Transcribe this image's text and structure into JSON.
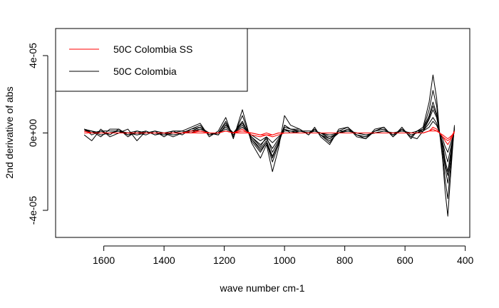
{
  "chart_data": {
    "type": "line",
    "title": "",
    "xlabel": "wave number cm-1",
    "ylabel": "2nd derivative of abs",
    "xlim": [
      1760,
      385
    ],
    "ylim": [
      -5.4e-05,
      5.4e-05
    ],
    "x_ticks": [
      1600,
      1400,
      1200,
      1000,
      800,
      600,
      400
    ],
    "x_tick_labels": [
      "1600",
      "1400",
      "1200",
      "1000",
      "800",
      "600",
      "400"
    ],
    "y_ticks": [
      -4e-05,
      0,
      4e-05
    ],
    "y_tick_labels": [
      "-4e-05",
      "0e+00",
      "4e-05"
    ],
    "grid": false,
    "legend_position": "top-left",
    "legend": [
      {
        "label": "50C Colombia SS",
        "color": "#ff0000"
      },
      {
        "label": "50C Colombia",
        "color": "#000000"
      }
    ],
    "series_groups": [
      {
        "legend_label": "50C Colombia",
        "color": "#000000",
        "x": [
          1665,
          1640,
          1610,
          1580,
          1550,
          1520,
          1490,
          1460,
          1430,
          1400,
          1370,
          1340,
          1310,
          1280,
          1250,
          1220,
          1195,
          1170,
          1140,
          1110,
          1080,
          1060,
          1040,
          1020,
          1000,
          980,
          950,
          920,
          900,
          880,
          850,
          820,
          790,
          760,
          730,
          700,
          670,
          640,
          610,
          580,
          560,
          540,
          520,
          507,
          495,
          485,
          475,
          467,
          458,
          450,
          443,
          436
        ],
        "lines": [
          [
            1e-06,
            1e-06,
            0,
            0,
            1e-06,
            0,
            -1e-06,
            0,
            0,
            0,
            0,
            0,
            1e-06,
            2e-06,
            0,
            0,
            3e-06,
            0,
            4e-06,
            -2e-06,
            -6e-06,
            -3e-06,
            -8e-06,
            -3e-06,
            2e-06,
            1e-06,
            1e-06,
            0,
            1e-06,
            0,
            -2e-06,
            0,
            1e-06,
            0,
            -1e-06,
            0,
            1e-06,
            0,
            1e-06,
            0,
            0,
            1e-06,
            5e-06,
            8e-06,
            5e-06,
            0,
            -5e-06,
            -1e-05,
            -1.5e-05,
            -9e-06,
            -4e-06,
            2e-06
          ],
          [
            2e-06,
            0,
            1e-06,
            -1e-06,
            2e-06,
            -1e-06,
            0,
            -1e-06,
            1e-06,
            0,
            -1e-06,
            0,
            2e-06,
            3e-06,
            -1e-06,
            0,
            5e-06,
            -1e-06,
            6e-06,
            -3e-06,
            -8e-06,
            -4e-06,
            -1.2e-05,
            -5e-06,
            3e-06,
            2e-06,
            1e-06,
            0,
            2e-06,
            -1e-06,
            -4e-06,
            0,
            2e-06,
            -1e-06,
            -2e-06,
            1e-06,
            2e-06,
            -1e-06,
            2e-06,
            -1e-06,
            0,
            2e-06,
            9e-06,
            1.6e-05,
            1e-05,
            0,
            -8e-06,
            -1.8e-05,
            -2.6e-05,
            -1.6e-05,
            -6e-06,
            3e-06
          ],
          [
            1e-06,
            1e-06,
            -1e-06,
            0,
            1e-06,
            0,
            1e-06,
            0,
            0,
            -1e-06,
            0,
            1e-06,
            0,
            2e-06,
            0,
            -1e-06,
            4e-06,
            0,
            5e-06,
            -2e-06,
            -7e-06,
            -2e-06,
            -1e-05,
            -4e-06,
            2e-06,
            0,
            1e-06,
            1e-06,
            1e-06,
            0,
            -3e-06,
            1e-06,
            1e-06,
            0,
            -1e-06,
            0,
            1e-06,
            0,
            1e-06,
            0,
            1e-06,
            1e-06,
            7e-06,
            1.2e-05,
            8e-06,
            0,
            -6e-06,
            -1.4e-05,
            -2e-05,
            -1.2e-05,
            -5e-06,
            2e-06
          ],
          [
            2e-06,
            -1e-06,
            1e-06,
            1e-06,
            1e-06,
            -1e-06,
            0,
            1e-06,
            -1e-06,
            0,
            1e-06,
            -1e-06,
            2e-06,
            4e-06,
            -1e-06,
            0,
            6e-06,
            -2e-06,
            9e-06,
            -4e-06,
            -1e-05,
            -5e-06,
            -1.5e-05,
            -6e-06,
            4e-06,
            2e-06,
            2e-06,
            -1e-06,
            2e-06,
            -1e-06,
            -5e-06,
            1e-06,
            3e-06,
            -1e-06,
            -3e-06,
            1e-06,
            3e-06,
            -2e-06,
            2e-06,
            -2e-06,
            1e-06,
            2e-06,
            1.2e-05,
            2.2e-05,
            1.4e-05,
            0,
            -1.1e-05,
            -2.4e-05,
            -3.4e-05,
            -2e-05,
            -8e-06,
            3e-06
          ],
          [
            1e-06,
            0,
            0,
            0,
            0,
            0,
            0,
            0,
            0,
            0,
            0,
            0,
            1e-06,
            1e-06,
            0,
            0,
            2e-06,
            0,
            3e-06,
            -1e-06,
            -4e-06,
            -2e-06,
            -5e-06,
            -2e-06,
            1e-06,
            1e-06,
            0,
            0,
            1e-06,
            0,
            -1e-06,
            0,
            1e-06,
            0,
            0,
            0,
            1e-06,
            0,
            0,
            0,
            0,
            1e-06,
            3e-06,
            6e-06,
            4e-06,
            0,
            -3e-06,
            -7e-06,
            -1e-05,
            -6e-06,
            -3e-06,
            1e-06
          ],
          [
            2e-06,
            1e-06,
            -2e-06,
            2e-06,
            2e-06,
            -2e-06,
            1e-06,
            0,
            1e-06,
            -2e-06,
            1e-06,
            1e-06,
            3e-06,
            5e-06,
            -2e-06,
            1e-06,
            8e-06,
            -3e-06,
            1.2e-05,
            -5e-06,
            -1.3e-05,
            -6e-06,
            -2e-05,
            -8e-06,
            9e-06,
            4e-06,
            2e-06,
            -1e-06,
            3e-06,
            -2e-06,
            -6e-06,
            2e-06,
            3e-06,
            -2e-06,
            -3e-06,
            2e-06,
            3e-06,
            -2e-06,
            3e-06,
            -3e-06,
            1e-06,
            3e-06,
            1.6e-05,
            3e-05,
            1.8e-05,
            0,
            -1.4e-05,
            -3e-05,
            -4.3e-05,
            -2.5e-05,
            -1e-05,
            4e-06
          ],
          [
            -1e-06,
            -4e-06,
            2e-06,
            -2e-06,
            0,
            2e-06,
            -4e-06,
            1e-06,
            -1e-06,
            0,
            -2e-06,
            0,
            1e-06,
            3e-06,
            0,
            -1e-06,
            4e-06,
            0,
            6e-06,
            -3e-06,
            -9e-06,
            -5e-06,
            -1.3e-05,
            -5e-06,
            4e-06,
            2e-06,
            1e-06,
            0,
            2e-06,
            -1e-06,
            -3e-06,
            0,
            2e-06,
            -1e-06,
            -2e-06,
            1e-06,
            2e-06,
            -1e-06,
            2e-06,
            -2e-06,
            -3e-06,
            1e-06,
            8e-06,
            1.4e-05,
            9e-06,
            0,
            -7e-06,
            -1.6e-05,
            -2.2e-05,
            -1.3e-05,
            -5e-06,
            2e-06
          ]
        ]
      },
      {
        "legend_label": "50C Colombia SS",
        "color": "#ff0000",
        "x": [
          1665,
          1640,
          1610,
          1580,
          1550,
          1520,
          1490,
          1460,
          1430,
          1400,
          1370,
          1340,
          1310,
          1280,
          1250,
          1220,
          1195,
          1170,
          1140,
          1110,
          1080,
          1060,
          1040,
          1020,
          1000,
          980,
          950,
          920,
          900,
          880,
          850,
          820,
          790,
          760,
          730,
          700,
          670,
          640,
          610,
          580,
          560,
          540,
          520,
          507,
          495,
          485,
          475,
          467,
          458,
          450,
          443,
          436
        ],
        "lines": [
          [
            1e-06,
            0,
            0,
            0,
            0,
            0,
            0,
            0,
            0,
            0,
            0,
            0,
            0,
            1e-06,
            0,
            0,
            1e-06,
            0,
            1e-06,
            0,
            -1e-06,
            -1e-06,
            -1e-06,
            0,
            0,
            0,
            0,
            0,
            0,
            0,
            0,
            0,
            0,
            0,
            0,
            0,
            0,
            0,
            0,
            0,
            0,
            0,
            1e-06,
            2e-06,
            1e-06,
            0,
            -2e-06,
            -3e-06,
            -4e-06,
            -3e-06,
            -1e-06,
            1e-06
          ],
          [
            0,
            0,
            0,
            0,
            0,
            0,
            0,
            0,
            0,
            0,
            0,
            0,
            0,
            0,
            0,
            0,
            1e-06,
            0,
            0,
            0,
            -1e-06,
            0,
            -1e-06,
            0,
            0,
            0,
            0,
            0,
            0,
            0,
            0,
            0,
            0,
            0,
            0,
            0,
            0,
            0,
            0,
            0,
            0,
            0,
            1e-06,
            1e-06,
            1e-06,
            0,
            -1e-06,
            -2e-06,
            -3e-06,
            -2e-06,
            -1e-06,
            0
          ],
          [
            1e-06,
            0,
            0,
            0,
            0,
            0,
            0,
            0,
            0,
            0,
            0,
            0,
            1e-06,
            1e-06,
            0,
            0,
            1e-06,
            0,
            2e-06,
            -1e-06,
            -2e-06,
            -1e-06,
            -2e-06,
            -1e-06,
            0,
            0,
            0,
            0,
            0,
            0,
            0,
            0,
            0,
            0,
            0,
            0,
            0,
            0,
            0,
            0,
            0,
            0,
            1e-06,
            3e-06,
            2e-06,
            0,
            -2e-06,
            -4e-06,
            -6e-06,
            -4e-06,
            -2e-06,
            1e-06
          ]
        ]
      }
    ]
  }
}
